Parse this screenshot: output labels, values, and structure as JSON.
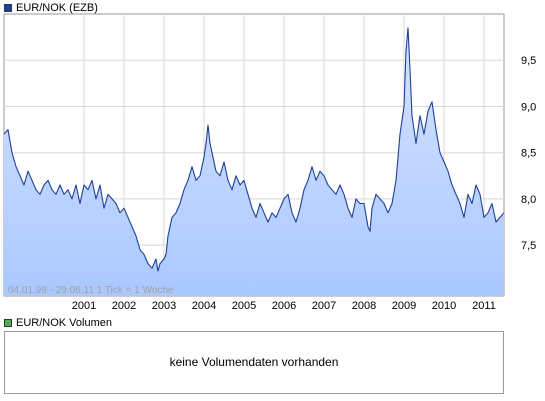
{
  "legend_main": {
    "label": "EUR/NOK (EZB)",
    "color": "#1f3f99"
  },
  "legend_volume": {
    "label": "EUR/NOK Volumen",
    "color": "#4caf50"
  },
  "range_label": "04.01.99 - 29.06.11   1 Tick = 1 Woche",
  "volume_message": "keine Volumendaten vorhanden",
  "chart_data": {
    "type": "area",
    "series": [
      {
        "name": "EUR/NOK (EZB)",
        "points": [
          [
            1999.0,
            8.7
          ],
          [
            1999.1,
            8.75
          ],
          [
            1999.2,
            8.5
          ],
          [
            1999.3,
            8.35
          ],
          [
            1999.4,
            8.25
          ],
          [
            1999.5,
            8.15
          ],
          [
            1999.6,
            8.3
          ],
          [
            1999.7,
            8.2
          ],
          [
            1999.8,
            8.1
          ],
          [
            1999.9,
            8.05
          ],
          [
            2000.0,
            8.15
          ],
          [
            2000.1,
            8.2
          ],
          [
            2000.2,
            8.1
          ],
          [
            2000.3,
            8.05
          ],
          [
            2000.4,
            8.15
          ],
          [
            2000.5,
            8.05
          ],
          [
            2000.6,
            8.1
          ],
          [
            2000.7,
            8.0
          ],
          [
            2000.8,
            8.15
          ],
          [
            2000.9,
            7.95
          ],
          [
            2001.0,
            8.15
          ],
          [
            2001.1,
            8.1
          ],
          [
            2001.2,
            8.2
          ],
          [
            2001.3,
            8.0
          ],
          [
            2001.4,
            8.15
          ],
          [
            2001.5,
            7.9
          ],
          [
            2001.6,
            8.05
          ],
          [
            2001.7,
            8.0
          ],
          [
            2001.8,
            7.95
          ],
          [
            2001.9,
            7.85
          ],
          [
            2002.0,
            7.9
          ],
          [
            2002.1,
            7.8
          ],
          [
            2002.2,
            7.7
          ],
          [
            2002.3,
            7.6
          ],
          [
            2002.4,
            7.45
          ],
          [
            2002.5,
            7.4
          ],
          [
            2002.6,
            7.3
          ],
          [
            2002.7,
            7.25
          ],
          [
            2002.8,
            7.35
          ],
          [
            2002.85,
            7.22
          ],
          [
            2002.9,
            7.3
          ],
          [
            2003.0,
            7.35
          ],
          [
            2003.05,
            7.4
          ],
          [
            2003.1,
            7.6
          ],
          [
            2003.2,
            7.8
          ],
          [
            2003.3,
            7.85
          ],
          [
            2003.4,
            7.95
          ],
          [
            2003.5,
            8.1
          ],
          [
            2003.6,
            8.2
          ],
          [
            2003.7,
            8.35
          ],
          [
            2003.8,
            8.2
          ],
          [
            2003.9,
            8.25
          ],
          [
            2004.0,
            8.45
          ],
          [
            2004.05,
            8.6
          ],
          [
            2004.1,
            8.8
          ],
          [
            2004.15,
            8.6
          ],
          [
            2004.2,
            8.5
          ],
          [
            2004.3,
            8.3
          ],
          [
            2004.4,
            8.25
          ],
          [
            2004.5,
            8.4
          ],
          [
            2004.6,
            8.2
          ],
          [
            2004.7,
            8.1
          ],
          [
            2004.8,
            8.25
          ],
          [
            2004.9,
            8.15
          ],
          [
            2005.0,
            8.2
          ],
          [
            2005.1,
            8.05
          ],
          [
            2005.2,
            7.9
          ],
          [
            2005.3,
            7.8
          ],
          [
            2005.4,
            7.95
          ],
          [
            2005.5,
            7.85
          ],
          [
            2005.6,
            7.75
          ],
          [
            2005.7,
            7.85
          ],
          [
            2005.8,
            7.8
          ],
          [
            2005.9,
            7.9
          ],
          [
            2006.0,
            8.0
          ],
          [
            2006.1,
            8.05
          ],
          [
            2006.2,
            7.85
          ],
          [
            2006.3,
            7.75
          ],
          [
            2006.4,
            7.9
          ],
          [
            2006.5,
            8.1
          ],
          [
            2006.6,
            8.2
          ],
          [
            2006.7,
            8.35
          ],
          [
            2006.8,
            8.2
          ],
          [
            2006.9,
            8.3
          ],
          [
            2007.0,
            8.25
          ],
          [
            2007.1,
            8.15
          ],
          [
            2007.2,
            8.1
          ],
          [
            2007.3,
            8.05
          ],
          [
            2007.4,
            8.15
          ],
          [
            2007.5,
            8.05
          ],
          [
            2007.6,
            7.9
          ],
          [
            2007.7,
            7.8
          ],
          [
            2007.8,
            8.0
          ],
          [
            2007.9,
            7.95
          ],
          [
            2008.0,
            7.95
          ],
          [
            2008.1,
            7.7
          ],
          [
            2008.15,
            7.65
          ],
          [
            2008.2,
            7.9
          ],
          [
            2008.3,
            8.05
          ],
          [
            2008.4,
            8.0
          ],
          [
            2008.5,
            7.95
          ],
          [
            2008.6,
            7.85
          ],
          [
            2008.7,
            7.95
          ],
          [
            2008.8,
            8.2
          ],
          [
            2008.9,
            8.7
          ],
          [
            2009.0,
            9.0
          ],
          [
            2009.05,
            9.6
          ],
          [
            2009.1,
            9.85
          ],
          [
            2009.15,
            9.4
          ],
          [
            2009.2,
            8.9
          ],
          [
            2009.3,
            8.6
          ],
          [
            2009.4,
            8.9
          ],
          [
            2009.5,
            8.7
          ],
          [
            2009.6,
            8.95
          ],
          [
            2009.7,
            9.05
          ],
          [
            2009.8,
            8.75
          ],
          [
            2009.9,
            8.5
          ],
          [
            2010.0,
            8.4
          ],
          [
            2010.1,
            8.3
          ],
          [
            2010.2,
            8.15
          ],
          [
            2010.3,
            8.05
          ],
          [
            2010.4,
            7.95
          ],
          [
            2010.5,
            7.8
          ],
          [
            2010.6,
            8.05
          ],
          [
            2010.7,
            7.95
          ],
          [
            2010.8,
            8.15
          ],
          [
            2010.9,
            8.05
          ],
          [
            2011.0,
            7.8
          ],
          [
            2011.1,
            7.85
          ],
          [
            2011.2,
            7.95
          ],
          [
            2011.3,
            7.75
          ],
          [
            2011.4,
            7.8
          ],
          [
            2011.5,
            7.85
          ]
        ]
      }
    ],
    "x_ticks": [
      "2001",
      "2002",
      "2003",
      "2004",
      "2005",
      "2006",
      "2007",
      "2008",
      "2009",
      "2010",
      "2011"
    ],
    "x_tick_values": [
      2001,
      2002,
      2003,
      2004,
      2005,
      2006,
      2007,
      2008,
      2009,
      2010,
      2011
    ],
    "y_ticks": [
      "7,5",
      "8,0",
      "8,5",
      "9,0",
      "9,5"
    ],
    "y_tick_values": [
      7.5,
      8.0,
      8.5,
      9.0,
      9.5
    ],
    "xlim": [
      1999.0,
      2011.5
    ],
    "ylim": [
      6.95,
      10.0
    ],
    "grid": true,
    "line_color": "#1f3f99",
    "fill_top_color": "#d6e4ff",
    "fill_bottom_color": "#aac8ff",
    "grid_color": "#d8d8d8"
  }
}
